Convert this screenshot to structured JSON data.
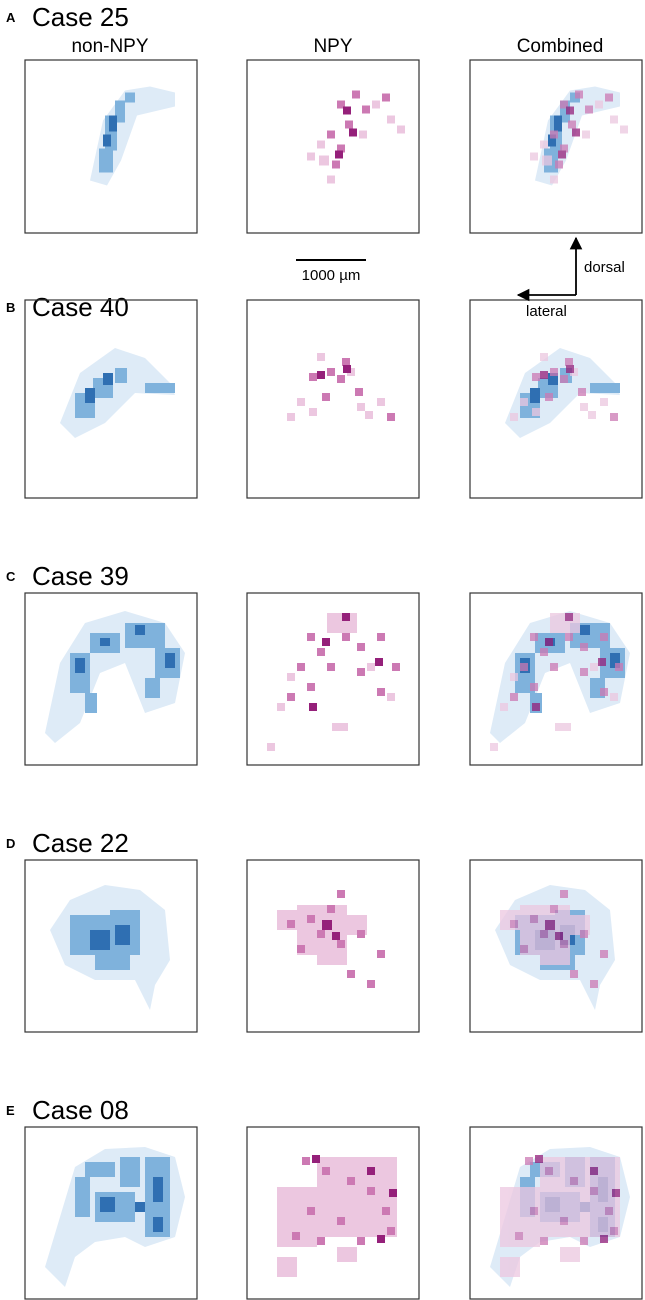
{
  "panels": [
    {
      "letter": "A",
      "title": "Case 25"
    },
    {
      "letter": "B",
      "title": "Case 40"
    },
    {
      "letter": "C",
      "title": "Case 39"
    },
    {
      "letter": "D",
      "title": "Case 22"
    },
    {
      "letter": "E",
      "title": "Case 08"
    }
  ],
  "columns": [
    "non-NPY",
    "NPY",
    "Combined"
  ],
  "scale_bar": "1000 µm",
  "orientation": {
    "vertical": "dorsal",
    "horizontal": "lateral"
  }
}
